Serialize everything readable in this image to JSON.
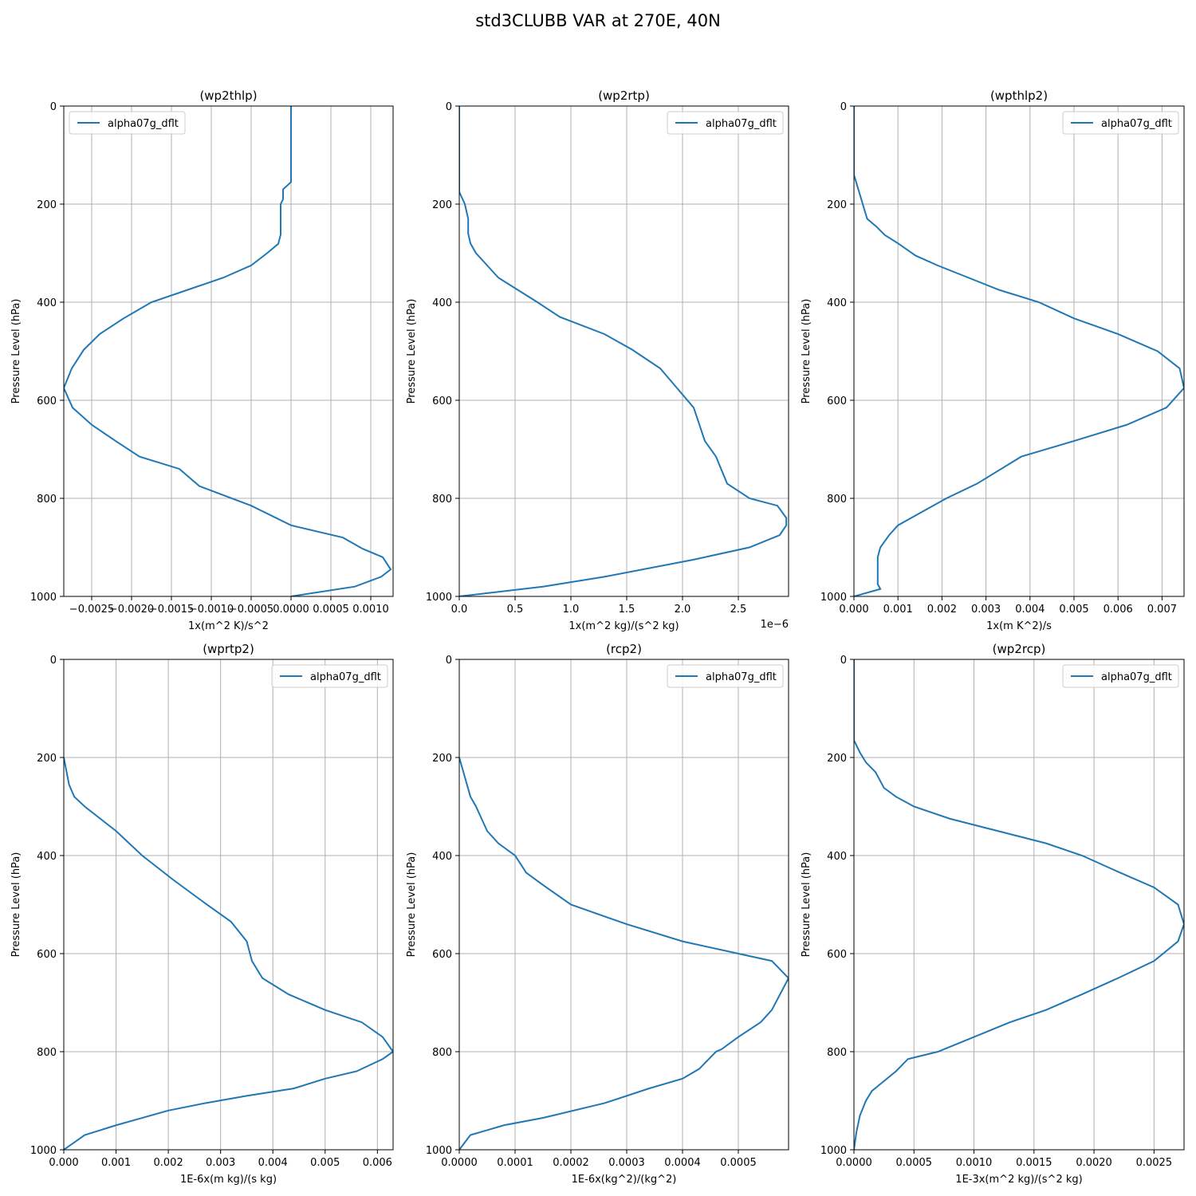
{
  "figure": {
    "title": "std3CLUBB VAR at 270E, 40N",
    "ylabel": "Pressure Level (hPa)",
    "legend_label": "alpha07g_dflt",
    "line_color": "#1f77b4",
    "grid_color": "#b0b0b0"
  },
  "chart_data": [
    {
      "type": "line",
      "title": "(wp2thlp)",
      "xlabel": "1x(m^2 K)/s^2",
      "ylabel": "Pressure Level (hPa)",
      "xlim": [
        -0.00285,
        0.00128
      ],
      "ylim": [
        1000,
        0
      ],
      "xticks": [
        -0.0025,
        -0.002,
        -0.0015,
        -0.001,
        -0.0005,
        0,
        0.0005,
        0.001
      ],
      "xtick_labels": [
        "−0.0025",
        "−0.0020",
        "−0.0015",
        "−0.0010",
        "−0.0005",
        "0.0000",
        "0.0005",
        "0.0010"
      ],
      "yticks": [
        0,
        200,
        400,
        600,
        800,
        1000
      ],
      "offset_text": "",
      "legend": "upper left",
      "grid": true,
      "series": [
        {
          "name": "alpha07g_dflt",
          "x": [
            0,
            0,
            0,
            -0.0001,
            -0.0001,
            -0.00013,
            -0.00013,
            -0.00013,
            -0.00016,
            -0.0003,
            -0.0005,
            -0.00085,
            -0.0013,
            -0.00175,
            -0.0021,
            -0.0024,
            -0.0026,
            -0.00275,
            -0.00285,
            -0.00274,
            -0.0025,
            -0.0022,
            -0.0019,
            -0.0014,
            -0.00115,
            -0.0005,
            0,
            0.00065,
            0.0009,
            0.00115,
            0.00125,
            0.00113,
            0.0008,
            0
          ],
          "y": [
            0,
            100,
            155,
            170,
            190,
            200,
            230,
            262,
            281,
            300,
            325,
            350,
            375,
            400,
            433,
            465,
            497,
            535,
            575,
            615,
            650,
            683,
            715,
            740,
            775,
            815,
            855,
            880,
            903,
            920,
            945,
            960,
            980,
            1000
          ]
        }
      ]
    },
    {
      "type": "line",
      "title": "(wp2rtp)",
      "xlabel": "1x(m^2 kg)/(s^2 kg)",
      "ylabel": "Pressure Level (hPa)",
      "xlim": [
        0,
        2.95e-06
      ],
      "ylim": [
        1000,
        0
      ],
      "xticks": [
        0,
        5e-07,
        1e-06,
        1.5e-06,
        2e-06,
        2.5e-06
      ],
      "xtick_labels": [
        "0.0",
        "0.5",
        "1.0",
        "1.5",
        "2.0",
        "2.5"
      ],
      "yticks": [
        0,
        200,
        400,
        600,
        800,
        1000
      ],
      "offset_text": "1e−6",
      "legend": "upper right",
      "grid": true,
      "series": [
        {
          "name": "alpha07g_dflt",
          "x": [
            0,
            0.0,
            5e-08,
            8e-08,
            8e-08,
            1e-07,
            1.5e-07,
            2.5e-07,
            3.5e-07,
            7e-07,
            9e-07,
            1.3e-06,
            1.55e-06,
            1.8e-06,
            1.95e-06,
            2.1e-06,
            2.2e-06,
            2.3e-06,
            2.4e-06,
            2.6e-06,
            2.85e-06,
            2.93e-06,
            2.93e-06,
            2.87e-06,
            2.6e-06,
            2.1e-06,
            1.3e-06,
            7.5e-07,
            0
          ],
          "y": [
            0,
            175,
            200,
            230,
            260,
            280,
            300,
            325,
            350,
            400,
            430,
            465,
            497,
            535,
            575,
            615,
            683,
            715,
            770,
            800,
            815,
            840,
            855,
            875,
            900,
            925,
            960,
            980,
            1000
          ]
        }
      ]
    },
    {
      "type": "line",
      "title": "(wpthlp2)",
      "xlabel": "1x(m K^2)/s",
      "ylabel": "Pressure Level (hPa)",
      "xlim": [
        0,
        0.0075
      ],
      "ylim": [
        1000,
        0
      ],
      "xticks": [
        0,
        0.001,
        0.002,
        0.003,
        0.004,
        0.005,
        0.006,
        0.007
      ],
      "xtick_labels": [
        "0.000",
        "0.001",
        "0.002",
        "0.003",
        "0.004",
        "0.005",
        "0.006",
        "0.007"
      ],
      "yticks": [
        0,
        200,
        400,
        600,
        800,
        1000
      ],
      "offset_text": "",
      "legend": "upper right",
      "grid": true,
      "series": [
        {
          "name": "alpha07g_dflt",
          "x": [
            0,
            0,
            0.0001,
            0.0002,
            0.0003,
            0.0005,
            0.0007,
            0.001,
            0.0014,
            0.0019,
            0.0026,
            0.0033,
            0.0042,
            0.005,
            0.006,
            0.0069,
            0.0074,
            0.0075,
            0.0071,
            0.0062,
            0.005,
            0.0038,
            0.0028,
            0.0021,
            0.0014,
            0.001,
            0.0008,
            0.0006,
            0.00054,
            0.00054,
            0.00054,
            0.00054,
            0.0006,
            0
          ],
          "y": [
            0,
            140,
            170,
            200,
            230,
            245,
            263,
            280,
            305,
            325,
            350,
            375,
            400,
            433,
            465,
            500,
            535,
            575,
            615,
            650,
            683,
            715,
            770,
            800,
            835,
            855,
            875,
            900,
            920,
            945,
            960,
            975,
            985,
            1000
          ]
        }
      ]
    },
    {
      "type": "line",
      "title": "(wprtp2)",
      "xlabel": "1E-6x(m kg)/(s kg)",
      "ylabel": "Pressure Level (hPa)",
      "xlim": [
        0,
        0.0063
      ],
      "ylim": [
        1000,
        0
      ],
      "xticks": [
        0,
        0.001,
        0.002,
        0.003,
        0.004,
        0.005,
        0.006
      ],
      "xtick_labels": [
        "0.000",
        "0.001",
        "0.002",
        "0.003",
        "0.004",
        "0.005",
        "0.006"
      ],
      "yticks": [
        0,
        200,
        400,
        600,
        800,
        1000
      ],
      "offset_text": "",
      "legend": "upper right",
      "grid": true,
      "series": [
        {
          "name": "alpha07g_dflt",
          "x": [
            0,
            0.0001,
            0.0002,
            0.0004,
            0.0007,
            0.001,
            0.0015,
            0.0021,
            0.0027,
            0.0032,
            0.0035,
            0.0036,
            0.0038,
            0.0043,
            0.005,
            0.0057,
            0.0061,
            0.0063,
            0.0061,
            0.0056,
            0.005,
            0.0044,
            0.0035,
            0.0027,
            0.002,
            0.0015,
            0.001,
            0.0007,
            0.0004,
            0.0002,
            0
          ],
          "y": [
            200,
            255,
            280,
            300,
            325,
            350,
            400,
            450,
            497,
            535,
            575,
            615,
            650,
            683,
            715,
            740,
            770,
            800,
            815,
            840,
            855,
            875,
            890,
            905,
            920,
            935,
            950,
            960,
            970,
            985,
            1000
          ]
        }
      ]
    },
    {
      "type": "line",
      "title": "(rcp2)",
      "xlabel": "1E-6x(kg^2)/(kg^2)",
      "ylabel": "Pressure Level (hPa)",
      "xlim": [
        0,
        0.00059
      ],
      "ylim": [
        1000,
        0
      ],
      "xticks": [
        0,
        0.0001,
        0.0002,
        0.0003,
        0.0004,
        0.0005
      ],
      "xtick_labels": [
        "0.0000",
        "0.0001",
        "0.0002",
        "0.0003",
        "0.0004",
        "0.0005"
      ],
      "yticks": [
        0,
        200,
        400,
        600,
        800,
        1000
      ],
      "offset_text": "",
      "legend": "upper right",
      "grid": true,
      "series": [
        {
          "name": "alpha07g_dflt",
          "x": [
            0,
            1e-05,
            2e-05,
            3e-05,
            4e-05,
            5e-05,
            7e-05,
            0.0001,
            0.00012,
            0.00015,
            0.0002,
            0.0003,
            0.0004,
            0.0005,
            0.00056,
            0.00059,
            0.00056,
            0.00054,
            0.0005,
            0.00047,
            0.00046,
            0.00043,
            0.0004,
            0.00034,
            0.00026,
            0.00015,
            8e-05,
            5e-05,
            2e-05,
            1e-05,
            0
          ],
          "y": [
            200,
            240,
            280,
            300,
            325,
            350,
            375,
            400,
            435,
            460,
            500,
            540,
            575,
            600,
            615,
            650,
            715,
            740,
            770,
            795,
            800,
            835,
            855,
            875,
            905,
            935,
            950,
            960,
            970,
            985,
            1000
          ]
        }
      ]
    },
    {
      "type": "line",
      "title": "(wp2rcp)",
      "xlabel": "1E-3x(m^2 kg)/(s^2 kg)",
      "ylabel": "Pressure Level (hPa)",
      "xlim": [
        0,
        0.00275
      ],
      "ylim": [
        1000,
        0
      ],
      "xticks": [
        0,
        0.0005,
        0.001,
        0.0015,
        0.002,
        0.0025
      ],
      "xtick_labels": [
        "0.0000",
        "0.0005",
        "0.0010",
        "0.0015",
        "0.0020",
        "0.0025"
      ],
      "yticks": [
        0,
        200,
        400,
        600,
        800,
        1000
      ],
      "offset_text": "",
      "legend": "upper right",
      "grid": true,
      "series": [
        {
          "name": "alpha07g_dflt",
          "x": [
            0,
            0,
            5e-05,
            0.0001,
            0.00018,
            0.00025,
            0.00035,
            0.0005,
            0.0008,
            0.0012,
            0.0016,
            0.0019,
            0.0022,
            0.0025,
            0.0027,
            0.00275,
            0.0027,
            0.0025,
            0.0022,
            0.0019,
            0.0016,
            0.0013,
            0.001,
            0.0007,
            0.00045,
            0.00035,
            0.00025,
            0.00015,
            0.0001,
            5e-05,
            2e-05,
            0
          ],
          "y": [
            0,
            165,
            190,
            210,
            230,
            262,
            280,
            300,
            325,
            350,
            375,
            400,
            433,
            465,
            500,
            540,
            575,
            615,
            650,
            683,
            715,
            740,
            770,
            800,
            815,
            840,
            860,
            880,
            900,
            930,
            965,
            1000
          ]
        }
      ]
    }
  ]
}
